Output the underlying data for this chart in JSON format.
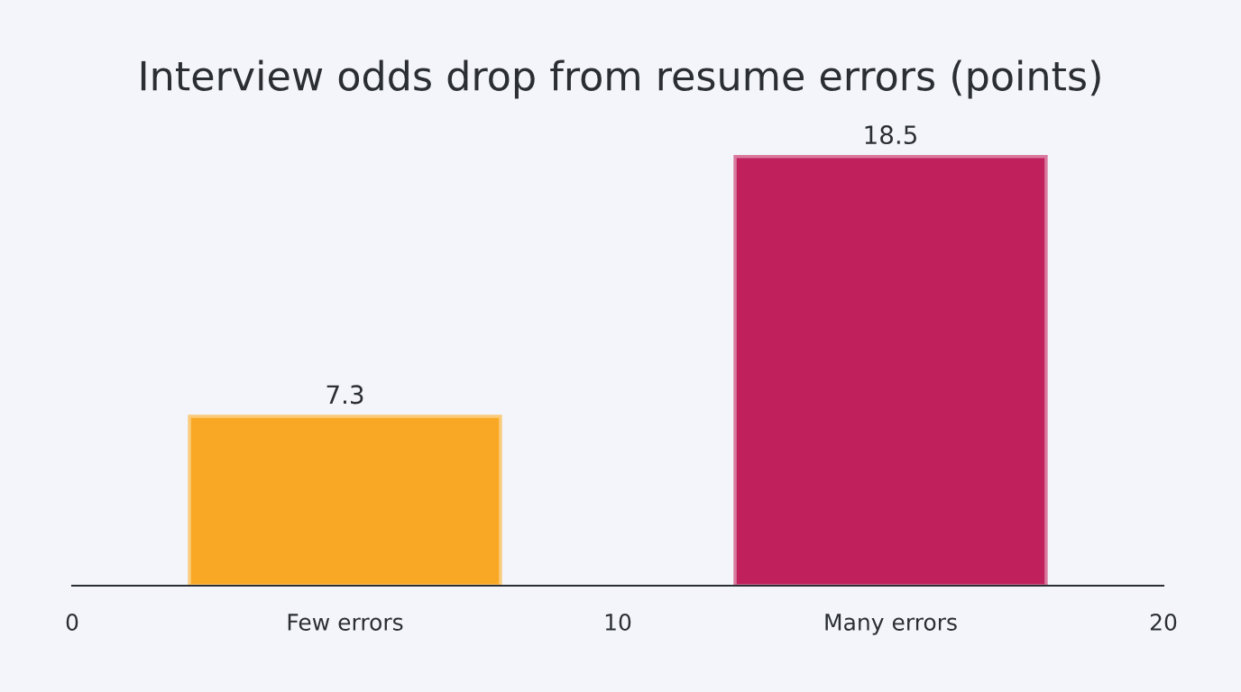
{
  "chart_data": {
    "type": "bar",
    "title": "Interview odds drop from resume errors (points)",
    "categories": [
      "Few errors",
      "Many errors"
    ],
    "values": [
      7.3,
      18.5
    ],
    "colors": [
      "#f9a825",
      "#c0205c"
    ],
    "data_labels": true,
    "x2lim": [
      0,
      20
    ],
    "x2ticks": [
      0,
      10,
      20
    ]
  }
}
